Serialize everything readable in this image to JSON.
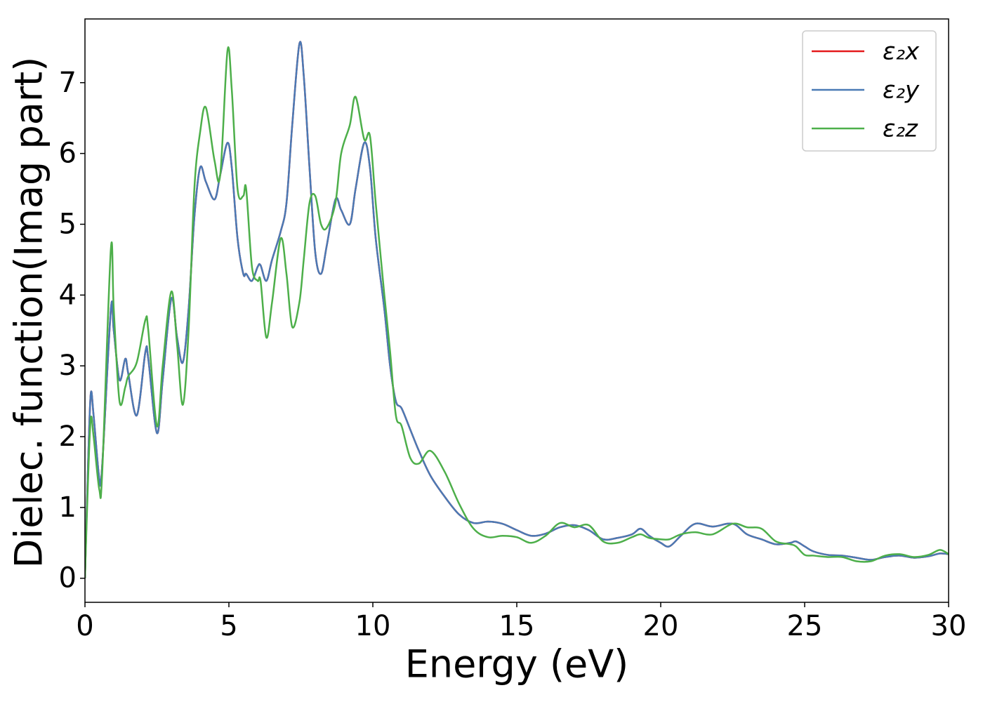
{
  "chart_data": {
    "type": "line",
    "xlabel": "Energy (eV)",
    "ylabel": "Dielec. function(Imag part)",
    "x": [
      0,
      0.1,
      0.2,
      0.3,
      0.5,
      0.6,
      0.9,
      1.0,
      1.2,
      1.4,
      1.5,
      1.8,
      2.1,
      2.2,
      2.5,
      2.7,
      3.0,
      3.2,
      3.4,
      3.6,
      3.8,
      4.0,
      4.2,
      4.5,
      4.7,
      4.95,
      5.1,
      5.3,
      5.5,
      5.6,
      5.8,
      6.0,
      6.1,
      6.3,
      6.5,
      6.8,
      7.0,
      7.2,
      7.45,
      7.6,
      7.8,
      8.0,
      8.2,
      8.4,
      8.7,
      8.9,
      9.2,
      9.4,
      9.7,
      9.9,
      10.1,
      10.4,
      10.6,
      10.8,
      11.0,
      11.3,
      11.6,
      12.0,
      12.5,
      13.0,
      13.5,
      14.0,
      14.5,
      15.0,
      15.5,
      16.0,
      16.5,
      17.0,
      17.5,
      18.0,
      18.5,
      19.0,
      19.3,
      19.6,
      20.0,
      20.3,
      20.7,
      21.2,
      21.8,
      22.5,
      23.0,
      23.5,
      24.0,
      24.5,
      24.7,
      25.0,
      25.3,
      25.8,
      26.3,
      26.8,
      27.3,
      27.8,
      28.3,
      28.8,
      29.3,
      29.7,
      30.0
    ],
    "series": [
      {
        "name": "ε₂x",
        "color": "#e41a1c",
        "values": [
          0,
          1.5,
          2.6,
          2.3,
          1.4,
          1.6,
          3.8,
          3.5,
          2.8,
          3.1,
          2.9,
          2.3,
          3.2,
          3.1,
          2.05,
          2.8,
          3.95,
          3.4,
          3.05,
          3.8,
          5.1,
          5.8,
          5.6,
          5.35,
          5.7,
          6.15,
          5.8,
          4.8,
          4.3,
          4.3,
          4.2,
          4.4,
          4.42,
          4.2,
          4.5,
          4.9,
          5.3,
          6.4,
          7.55,
          7.1,
          5.8,
          4.6,
          4.3,
          4.7,
          5.35,
          5.2,
          5.0,
          5.5,
          6.15,
          5.8,
          4.8,
          3.8,
          3.0,
          2.5,
          2.4,
          2.1,
          1.8,
          1.45,
          1.15,
          0.9,
          0.78,
          0.8,
          0.77,
          0.68,
          0.6,
          0.63,
          0.72,
          0.75,
          0.68,
          0.55,
          0.57,
          0.62,
          0.7,
          0.6,
          0.5,
          0.45,
          0.6,
          0.77,
          0.73,
          0.77,
          0.62,
          0.55,
          0.48,
          0.5,
          0.52,
          0.45,
          0.38,
          0.33,
          0.32,
          0.29,
          0.26,
          0.3,
          0.32,
          0.29,
          0.31,
          0.35,
          0.34
        ]
      },
      {
        "name": "ε₂y",
        "color": "#4a7ab5",
        "values": [
          0,
          1.5,
          2.6,
          2.3,
          1.4,
          1.6,
          3.8,
          3.5,
          2.8,
          3.1,
          2.9,
          2.3,
          3.2,
          3.1,
          2.05,
          2.8,
          3.95,
          3.4,
          3.05,
          3.8,
          5.1,
          5.8,
          5.6,
          5.35,
          5.7,
          6.15,
          5.8,
          4.8,
          4.3,
          4.3,
          4.2,
          4.4,
          4.42,
          4.2,
          4.5,
          4.9,
          5.3,
          6.4,
          7.55,
          7.1,
          5.8,
          4.6,
          4.3,
          4.7,
          5.35,
          5.2,
          5.0,
          5.5,
          6.15,
          5.8,
          4.8,
          3.8,
          3.0,
          2.5,
          2.4,
          2.1,
          1.8,
          1.45,
          1.15,
          0.9,
          0.78,
          0.8,
          0.77,
          0.68,
          0.6,
          0.63,
          0.72,
          0.75,
          0.68,
          0.55,
          0.57,
          0.62,
          0.7,
          0.6,
          0.5,
          0.45,
          0.6,
          0.77,
          0.73,
          0.77,
          0.62,
          0.55,
          0.48,
          0.5,
          0.52,
          0.45,
          0.38,
          0.33,
          0.32,
          0.29,
          0.26,
          0.3,
          0.32,
          0.29,
          0.31,
          0.35,
          0.34
        ]
      },
      {
        "name": "ε₂z",
        "color": "#4daf4a",
        "values": [
          0,
          1.3,
          2.25,
          2.0,
          1.25,
          1.5,
          4.65,
          3.8,
          2.5,
          2.7,
          2.85,
          3.05,
          3.65,
          3.5,
          2.15,
          3.0,
          4.05,
          3.3,
          2.45,
          3.5,
          5.5,
          6.3,
          6.65,
          5.9,
          5.7,
          7.45,
          6.9,
          5.5,
          5.4,
          5.5,
          4.4,
          4.2,
          4.2,
          3.4,
          3.9,
          4.8,
          4.3,
          3.55,
          3.9,
          4.5,
          5.3,
          5.4,
          5.0,
          4.95,
          5.3,
          6.0,
          6.4,
          6.8,
          6.2,
          6.25,
          5.3,
          4.0,
          3.2,
          2.3,
          2.15,
          1.7,
          1.62,
          1.8,
          1.5,
          1.05,
          0.7,
          0.58,
          0.6,
          0.58,
          0.5,
          0.6,
          0.78,
          0.72,
          0.75,
          0.52,
          0.5,
          0.58,
          0.62,
          0.57,
          0.55,
          0.55,
          0.62,
          0.65,
          0.62,
          0.77,
          0.72,
          0.7,
          0.52,
          0.48,
          0.45,
          0.33,
          0.32,
          0.3,
          0.3,
          0.24,
          0.24,
          0.32,
          0.34,
          0.3,
          0.33,
          0.4,
          0.34
        ]
      }
    ],
    "xlim": [
      0,
      30
    ],
    "xticks": [
      0,
      5,
      10,
      15,
      20,
      25,
      30
    ],
    "ylim": [
      -0.34,
      7.9
    ],
    "yticks": [
      0,
      1,
      2,
      3,
      4,
      5,
      6,
      7
    ],
    "legend": "upper right"
  }
}
